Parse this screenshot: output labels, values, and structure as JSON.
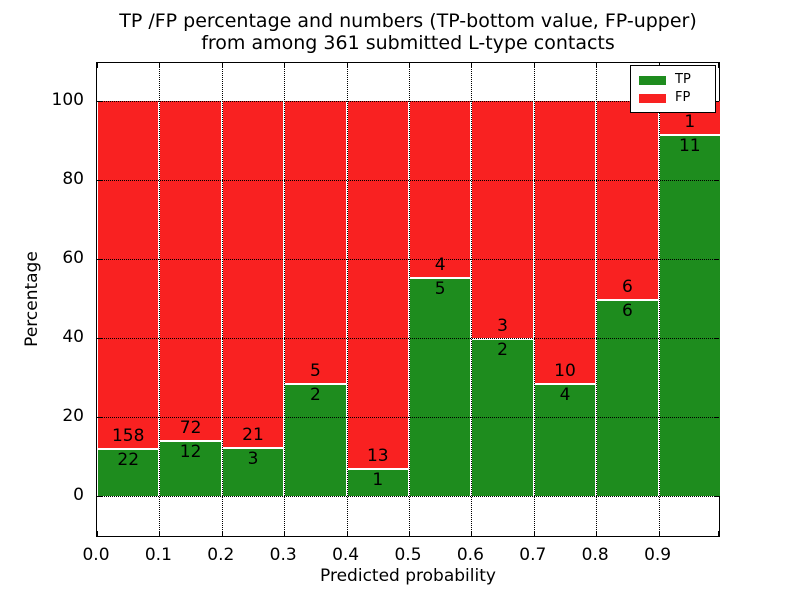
{
  "title": {
    "line1": "TP /FP percentage and numbers (TP-bottom value, FP-upper)",
    "line2": "from among 361 submitted L-type contacts"
  },
  "axes": {
    "x_label": "Predicted probability",
    "y_label": "Percentage",
    "x_tick_labels": [
      "0.0",
      "0.1",
      "0.2",
      "0.3",
      "0.4",
      "0.5",
      "0.6",
      "0.7",
      "0.8",
      "0.9"
    ],
    "y_tick_labels": [
      "0",
      "20",
      "40",
      "60",
      "80",
      "100"
    ],
    "y_tick_values": [
      0,
      20,
      40,
      60,
      80,
      100
    ]
  },
  "legend": {
    "items": [
      {
        "label": "TP",
        "color": "#1e8c1e"
      },
      {
        "label": "FP",
        "color": "#f92121"
      }
    ]
  },
  "chart_data": {
    "type": "bar",
    "stacked": true,
    "normalization": "each bar stacked to 100%",
    "title": "TP /FP percentage and numbers (TP-bottom value, FP-upper) from among 361 submitted L-type contacts",
    "xlabel": "Predicted probability",
    "ylabel": "Percentage",
    "total_contacts": 361,
    "bin_edges": [
      0.0,
      0.1,
      0.2,
      0.3,
      0.4,
      0.5,
      0.6,
      0.7,
      0.8,
      0.9,
      1.0
    ],
    "categories": [
      "0.0-0.1",
      "0.1-0.2",
      "0.2-0.3",
      "0.3-0.4",
      "0.4-0.5",
      "0.5-0.6",
      "0.6-0.7",
      "0.7-0.8",
      "0.8-0.9",
      "0.9-1.0"
    ],
    "series": [
      {
        "name": "TP",
        "color": "#1e8c1e",
        "position": "bottom",
        "counts": [
          22,
          12,
          3,
          2,
          1,
          5,
          2,
          4,
          6,
          11
        ],
        "percent": [
          12.2,
          14.3,
          12.5,
          28.6,
          7.1,
          55.6,
          40.0,
          28.6,
          50.0,
          91.7
        ]
      },
      {
        "name": "FP",
        "color": "#f92121",
        "position": "top",
        "counts": [
          158,
          72,
          21,
          5,
          13,
          4,
          3,
          10,
          6,
          1
        ],
        "percent": [
          87.8,
          85.7,
          87.5,
          71.4,
          92.9,
          44.4,
          60.0,
          71.4,
          50.0,
          8.3
        ]
      }
    ],
    "xlim": [
      0.0,
      1.0
    ],
    "ylim": [
      -10.6,
      109.6
    ],
    "grid": "dotted both axes",
    "legend_position": "upper right"
  }
}
